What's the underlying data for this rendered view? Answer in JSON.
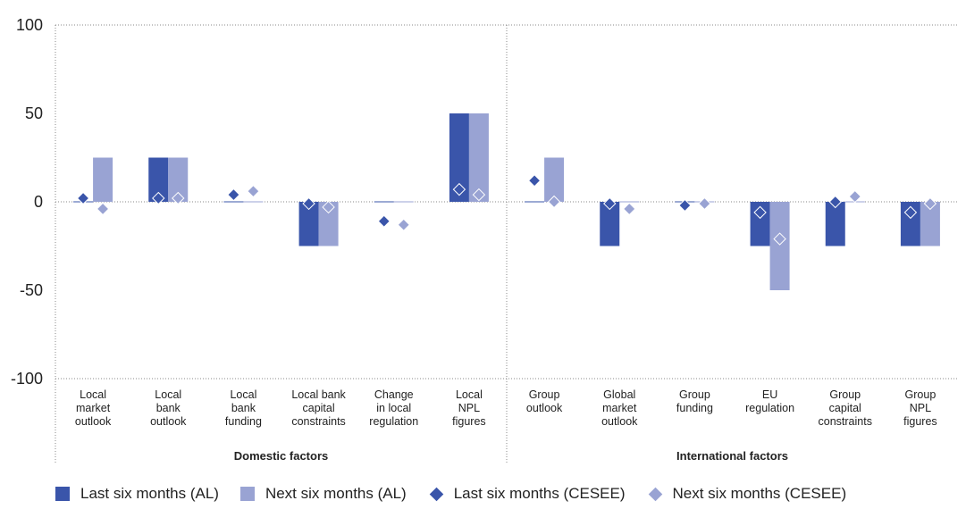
{
  "chart_data": {
    "type": "bar",
    "y_ticks": [
      "100",
      "50",
      "0",
      "-50",
      "-100"
    ],
    "ylim": [
      -100,
      100
    ],
    "categories": [
      [
        "Local",
        "market",
        "outlook"
      ],
      [
        "Local",
        "bank",
        "outlook"
      ],
      [
        "Local",
        "bank",
        "funding"
      ],
      [
        "Local bank",
        "capital",
        "constraints"
      ],
      [
        "Change",
        "in local",
        "regulation"
      ],
      [
        "Local",
        "NPL",
        "figures"
      ],
      [
        "Group",
        "outlook"
      ],
      [
        "Global",
        "market",
        "outlook"
      ],
      [
        "Group",
        "funding"
      ],
      [
        "EU",
        "regulation"
      ],
      [
        "Group",
        "capital",
        "constraints"
      ],
      [
        "Group",
        "NPL",
        "figures"
      ]
    ],
    "groups": [
      {
        "label": "Domestic factors",
        "span": [
          0,
          5
        ]
      },
      {
        "label": "International factors",
        "span": [
          6,
          11
        ]
      }
    ],
    "series": [
      {
        "name": "Last six months (AL)",
        "kind": "bar",
        "color": "#3a55aa",
        "values": [
          0,
          25,
          0,
          -25,
          0,
          50,
          0,
          -25,
          0,
          -25,
          -25,
          -25
        ]
      },
      {
        "name": "Next six months (AL)",
        "kind": "bar",
        "color": "#99a3d3",
        "values": [
          25,
          25,
          0,
          -25,
          0,
          50,
          25,
          0,
          0,
          -50,
          0,
          -25
        ]
      },
      {
        "name": "Last six months (CESEE)",
        "kind": "marker",
        "color": "#3a55aa",
        "values": [
          2,
          2,
          4,
          -1,
          -11,
          7,
          12,
          -1,
          -2,
          -6,
          0,
          -6
        ]
      },
      {
        "name": "Next six months (CESEE)",
        "kind": "marker",
        "color": "#99a3d3",
        "values": [
          -4,
          2,
          6,
          -3,
          -13,
          4,
          0,
          -4,
          -1,
          -21,
          3,
          -1
        ]
      }
    ],
    "grid": false,
    "legend_position": "bottom"
  }
}
